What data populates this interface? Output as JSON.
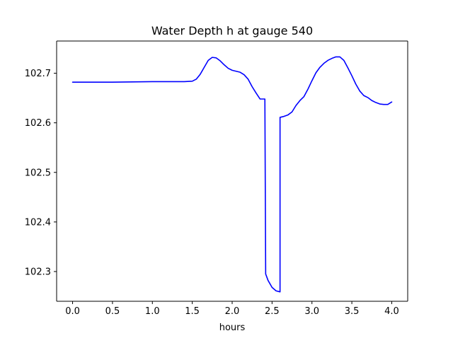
{
  "chart_data": {
    "type": "line",
    "title": "Water Depth h at gauge 540",
    "xlabel": "hours",
    "ylabel": "",
    "xlim": [
      -0.2,
      4.2
    ],
    "ylim": [
      102.24,
      102.765
    ],
    "xticks": [
      0.0,
      0.5,
      1.0,
      1.5,
      2.0,
      2.5,
      3.0,
      3.5,
      4.0
    ],
    "xtick_labels": [
      "0.0",
      "0.5",
      "1.0",
      "1.5",
      "2.0",
      "2.5",
      "3.0",
      "3.5",
      "4.0"
    ],
    "yticks": [
      102.3,
      102.4,
      102.5,
      102.6,
      102.7
    ],
    "ytick_labels": [
      "102.3",
      "102.4",
      "102.5",
      "102.6",
      "102.7"
    ],
    "grid": false,
    "legend": "none",
    "series": [
      {
        "color": "#0000ff",
        "x": [
          0.0,
          0.5,
          1.0,
          1.4,
          1.5,
          1.55,
          1.6,
          1.65,
          1.7,
          1.75,
          1.8,
          1.85,
          1.9,
          1.95,
          2.0,
          2.05,
          2.1,
          2.15,
          2.2,
          2.25,
          2.3,
          2.35,
          2.41,
          2.42,
          2.45,
          2.5,
          2.55,
          2.6,
          2.6,
          2.65,
          2.7,
          2.75,
          2.8,
          2.85,
          2.9,
          2.95,
          3.0,
          3.05,
          3.1,
          3.15,
          3.2,
          3.25,
          3.3,
          3.35,
          3.4,
          3.45,
          3.5,
          3.55,
          3.6,
          3.65,
          3.7,
          3.75,
          3.8,
          3.85,
          3.9,
          3.95,
          4.0
        ],
        "y": [
          102.682,
          102.682,
          102.683,
          102.683,
          102.684,
          102.688,
          102.698,
          102.712,
          102.726,
          102.732,
          102.731,
          102.725,
          102.717,
          102.71,
          102.706,
          102.704,
          102.702,
          102.697,
          102.688,
          102.673,
          102.66,
          102.648,
          102.648,
          102.295,
          102.282,
          102.268,
          102.261,
          102.259,
          102.611,
          102.613,
          102.616,
          102.622,
          102.635,
          102.645,
          102.653,
          102.668,
          102.685,
          102.701,
          102.712,
          102.72,
          102.726,
          102.73,
          102.733,
          102.733,
          102.726,
          102.711,
          102.695,
          102.678,
          102.664,
          102.655,
          102.651,
          102.645,
          102.641,
          102.638,
          102.637,
          102.637,
          102.642
        ]
      }
    ]
  }
}
